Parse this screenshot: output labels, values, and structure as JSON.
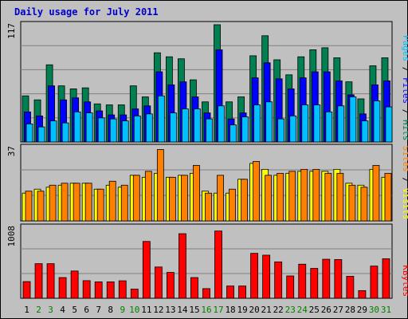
{
  "chart_data": {
    "type": "bar",
    "title": "Daily usage for July 2011",
    "categories": [
      "1",
      "2",
      "3",
      "4",
      "5",
      "6",
      "7",
      "8",
      "9",
      "10",
      "11",
      "12",
      "13",
      "14",
      "15",
      "16",
      "17",
      "18",
      "19",
      "20",
      "21",
      "22",
      "23",
      "24",
      "25",
      "26",
      "27",
      "28",
      "29",
      "30",
      "31"
    ],
    "weekend_days": [
      "2",
      "3",
      "9",
      "10",
      "16",
      "17",
      "23",
      "24",
      "30",
      "31"
    ],
    "colors": {
      "hits": "#008050",
      "files": "#0000ff",
      "pages": "#00c0ff",
      "visits": "#ffff00",
      "sites": "#ff8000",
      "kbytes": "#ff0000",
      "weekday_tick": "#000000",
      "weekend_tick": "#008000",
      "title": "#0000cc",
      "background": "#c0c0c0"
    },
    "panels": [
      {
        "id": "hits-files-pages",
        "ymax_label": "117",
        "ymax": 117,
        "legend": [
          {
            "label": "Pages",
            "color": "#00c0ff"
          },
          {
            "label": " / ",
            "color": "#000000"
          },
          {
            "label": "Files",
            "color": "#0000ff"
          },
          {
            "label": " / ",
            "color": "#000000"
          },
          {
            "label": "Hits",
            "color": "#008050"
          }
        ],
        "series": [
          {
            "name": "Hits",
            "color": "#008050",
            "values": [
              46,
              42,
              77,
              56,
              53,
              54,
              38,
              37,
              37,
              56,
              45,
              89,
              85,
              83,
              62,
              40,
              117,
              40,
              45,
              86,
              106,
              82,
              67,
              85,
              92,
              94,
              84,
              60,
              43,
              76,
              84
            ]
          },
          {
            "name": "Files",
            "color": "#0000ff",
            "values": [
              30,
              26,
              56,
              42,
              44,
              40,
              31,
              27,
              27,
              33,
              36,
              70,
              57,
              60,
              45,
              29,
              92,
              23,
              29,
              64,
              79,
              63,
              53,
              64,
              70,
              70,
              61,
              47,
              28,
              57,
              61
            ]
          },
          {
            "name": "Pages",
            "color": "#00c0ff",
            "values": [
              18,
              15,
              21,
              19,
              30,
              29,
              24,
              23,
              21,
              26,
              28,
              46,
              29,
              33,
              33,
              23,
              36,
              17,
              25,
              37,
              40,
              23,
              26,
              37,
              37,
              30,
              36,
              45,
              21,
              41,
              35
            ]
          }
        ]
      },
      {
        "id": "visits-sites",
        "ymax_label": "37",
        "ymax": 37,
        "legend": [
          {
            "label": "Sites",
            "color": "#ff8000"
          },
          {
            "label": " / ",
            "color": "#000000"
          },
          {
            "label": "Visits",
            "color": "#ffff00"
          }
        ],
        "series": [
          {
            "name": "Visits",
            "color": "#ffff00",
            "values": [
              14,
              16,
              17,
              18,
              19,
              19,
              16,
              18,
              17,
              23,
              22,
              24,
              22,
              23,
              24,
              15,
              14,
              14,
              21,
              29,
              26,
              23,
              24,
              25,
              25,
              25,
              26,
              19,
              18,
              26,
              22
            ]
          },
          {
            "name": "Sites",
            "color": "#ff8000",
            "values": [
              15,
              15,
              18,
              19,
              19,
              19,
              16,
              20,
              18,
              23,
              25,
              36,
              22,
              23,
              28,
              14,
              23,
              16,
              21,
              30,
              23,
              24,
              25,
              26,
              26,
              24,
              24,
              18,
              17,
              28,
              24
            ]
          }
        ]
      },
      {
        "id": "kbytes",
        "ymax_label": "1008",
        "ymax": 1008,
        "legend": [
          {
            "label": "KBytes",
            "color": "#ff0000"
          }
        ],
        "series": [
          {
            "name": "KBytes",
            "color": "#ff0000",
            "values": [
              237,
              491,
              491,
              294,
              387,
              250,
              233,
              233,
              248,
              130,
              807,
              444,
              367,
              917,
              294,
              137,
              955,
              174,
              174,
              638,
              612,
              517,
              317,
              484,
              424,
              554,
              550,
              312,
              109,
              457,
              561
            ]
          }
        ]
      }
    ]
  }
}
